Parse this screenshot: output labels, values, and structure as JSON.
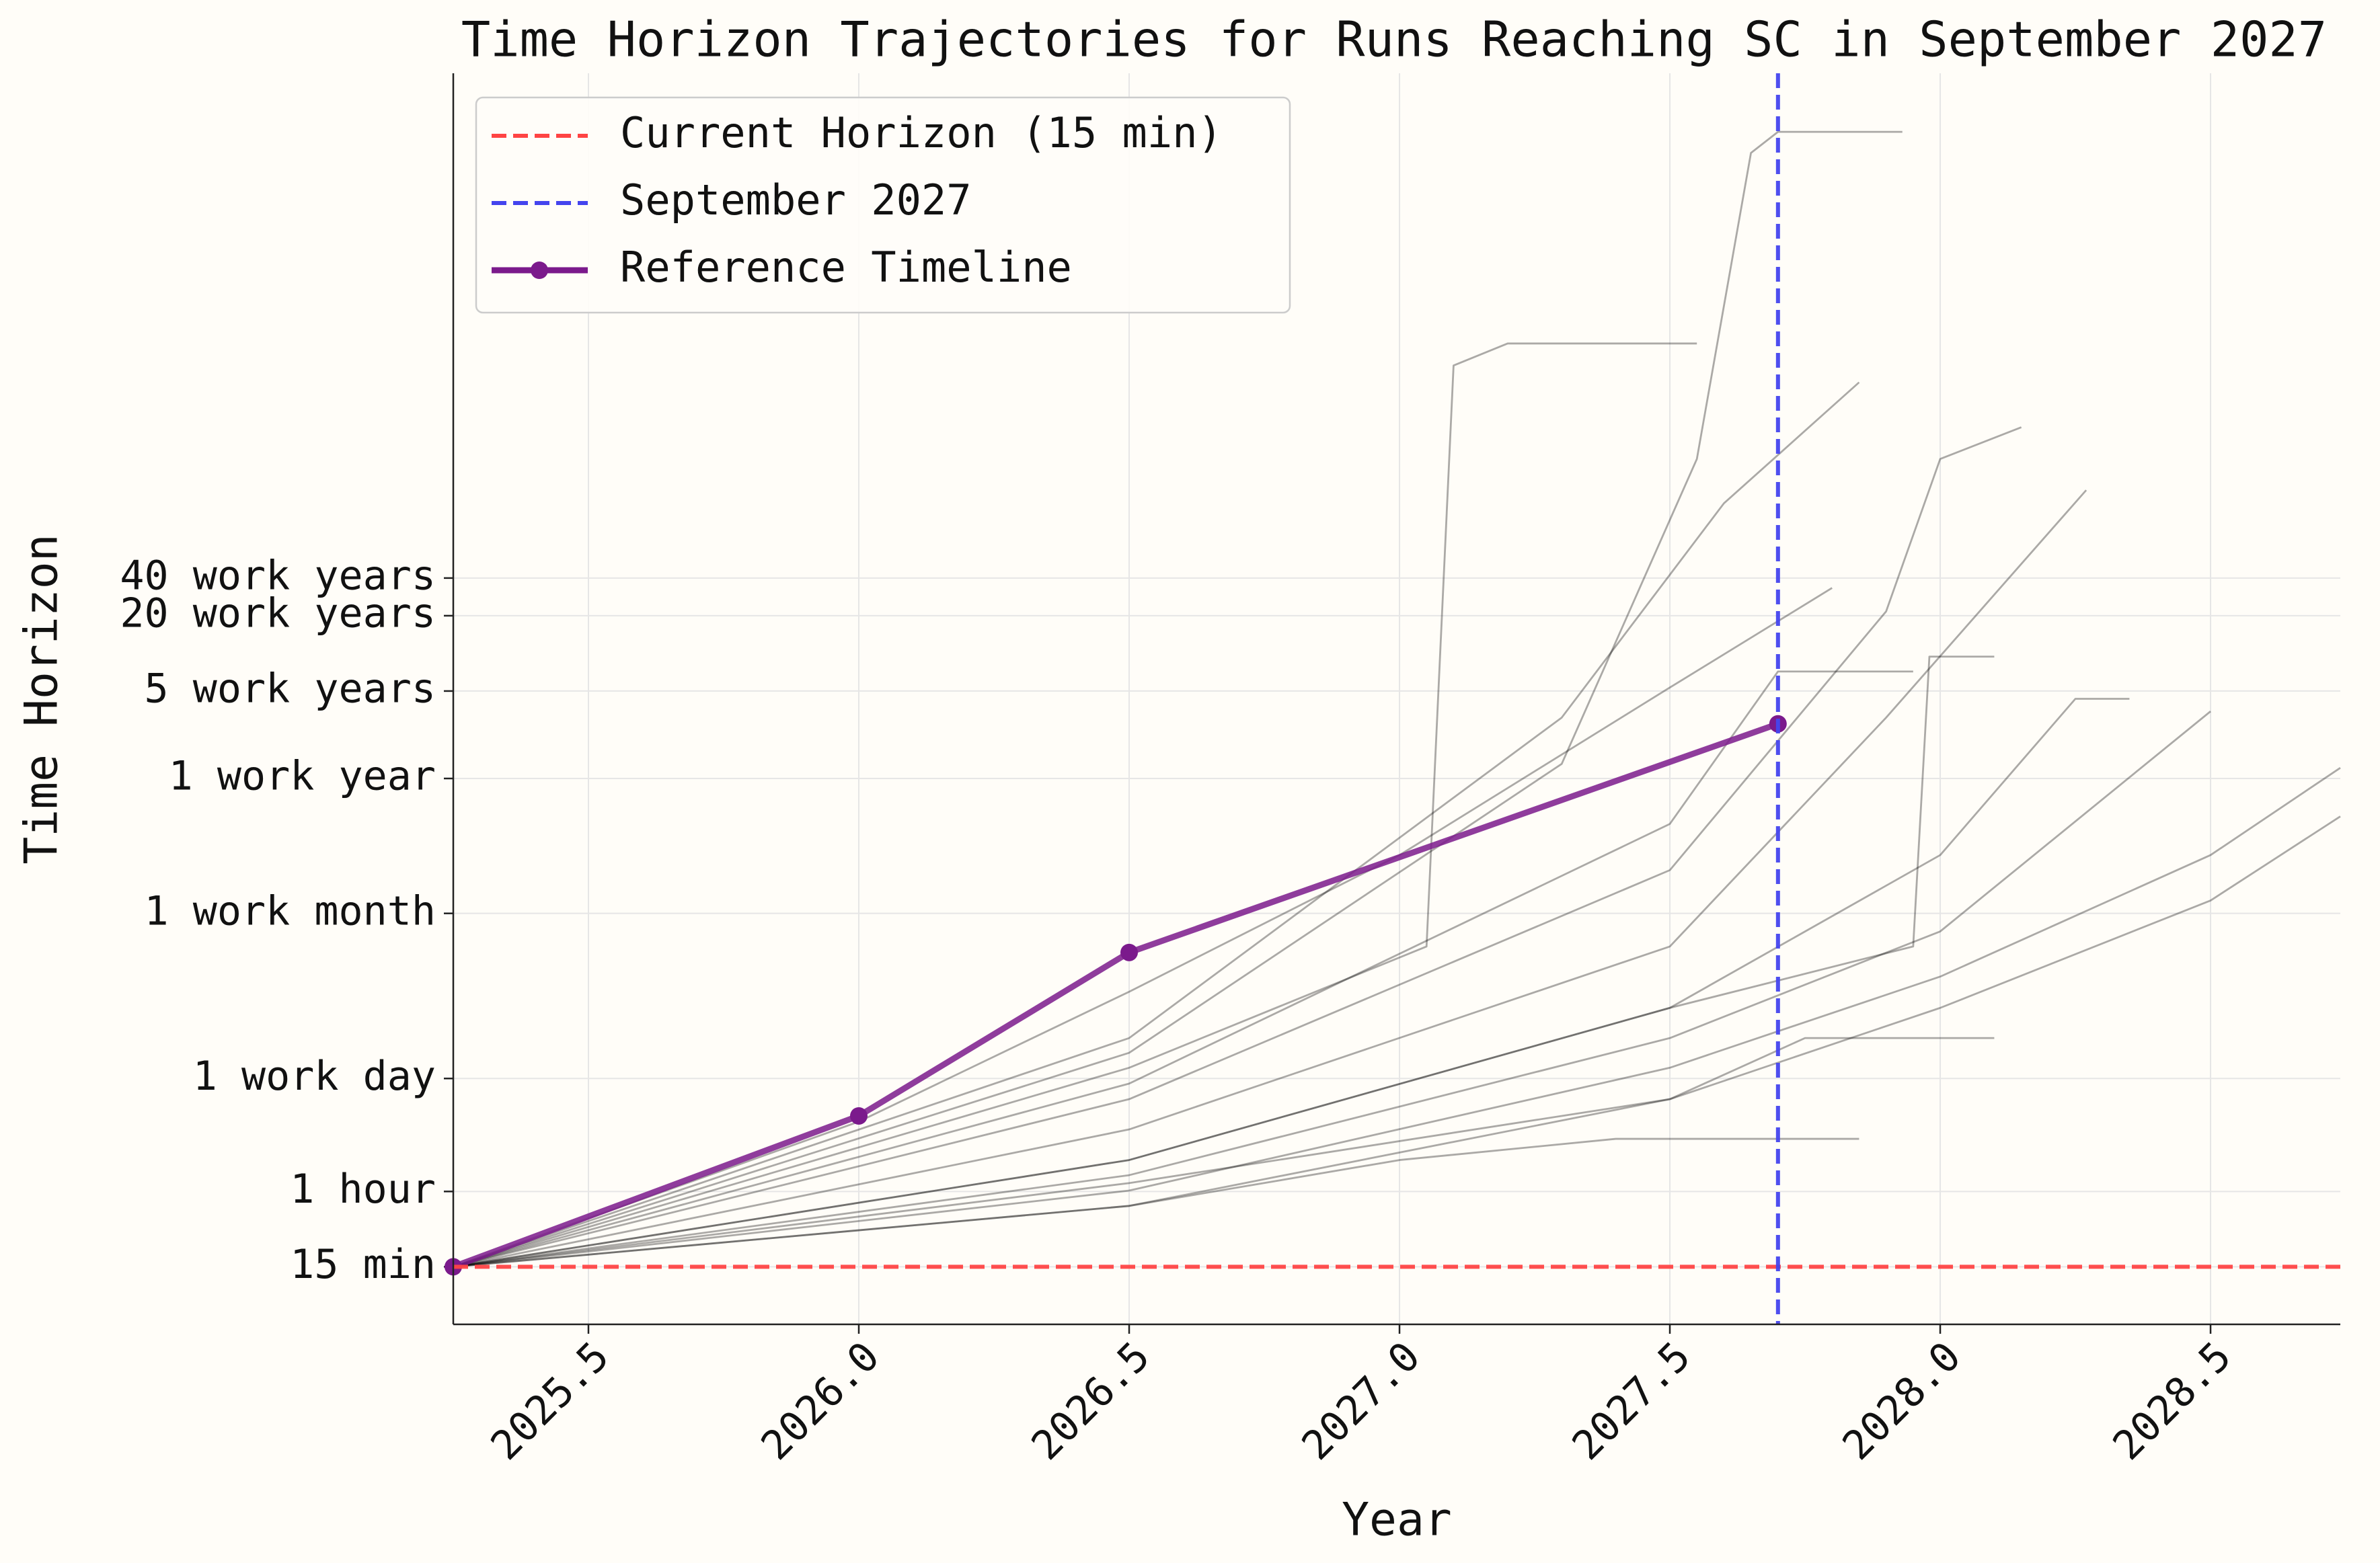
{
  "chart_data": {
    "type": "line",
    "title": "Time Horizon Trajectories for Runs Reaching SC in September 2027",
    "xlabel": "Year",
    "ylabel": "Time Horizon",
    "xlim": [
      2025.25,
      2028.74
    ],
    "xticks": [
      2025.5,
      {
        "value": 2026,
        "label": "2026.0"
      },
      2026.5,
      {
        "value": 2027,
        "label": "2027.0"
      },
      2027.5,
      {
        "value": 2028,
        "label": "2028.0"
      },
      2028.5
    ],
    "ylim": [
      5.2,
      52000000000
    ],
    "yscale": "log",
    "yticks": [
      {
        "value": 15,
        "label": "15 min"
      },
      {
        "value": 60,
        "label": "1 hour"
      },
      {
        "value": 480,
        "label": "1 work day"
      },
      {
        "value": 10020,
        "label": "1 work month"
      },
      {
        "value": 120000,
        "label": "1 work year"
      },
      {
        "value": 600000,
        "label": "5 work years"
      },
      {
        "value": 2400000,
        "label": "20 work years"
      },
      {
        "value": 4800000,
        "label": "40 work years"
      }
    ],
    "grid": true,
    "legend": "upper left",
    "reference_lines": [
      {
        "name": "Current Horizon (15 min)",
        "axis": "y",
        "value": 15,
        "color": "#ff4444"
      },
      {
        "name": "September 2027",
        "axis": "x",
        "value": 2027.7,
        "color": "#4444ee"
      }
    ],
    "series": [
      {
        "color": "#000000",
        "x": [
          2025.25,
          2026.5,
          2027.5,
          2028.0,
          2028.5,
          2028.74
        ],
        "values": [
          15,
          46,
          328,
          1760,
          12700,
          59700
        ]
      },
      {
        "color": "#000000",
        "x": [
          2025.25,
          2026.5,
          2027.5,
          2028.0,
          2028.5,
          2028.74
        ],
        "values": [
          15,
          61,
          585,
          3130,
          29300,
          146000
        ]
      },
      {
        "color": "#000000",
        "x": [
          2025.25,
          2026.5,
          2027.5,
          2028.0,
          2028.5
        ],
        "values": [
          15,
          81,
          1010,
          7190,
          413000
        ]
      },
      {
        "color": "#000000",
        "x": [
          2025.25,
          2026.5,
          2027.5,
          2028.0,
          2028.25,
          2028.35
        ],
        "values": [
          15,
          107,
          1760,
          29300,
          520000,
          520000
        ]
      },
      {
        "color": "#000000",
        "x": [
          2025.25,
          2026.5,
          2027.5,
          2027.9,
          2028.27
        ],
        "values": [
          15,
          188,
          5450,
          368000,
          24200000
        ]
      },
      {
        "color": "#000000",
        "x": [
          2025.25,
          2026.5,
          2027.5,
          2027.9,
          2028.0,
          2028.15
        ],
        "values": [
          15,
          328,
          22200,
          2600000,
          43000000,
          77000000
        ]
      },
      {
        "color": "#000000",
        "x": [
          2025.25,
          2026.5,
          2027.05,
          2027.1,
          2027.2,
          2027.55
        ],
        "values": [
          15,
          585,
          5450,
          240000000,
          360000000,
          360000000
        ]
      },
      {
        "color": "#000000",
        "x": [
          2025.25,
          2026.5,
          2027.3,
          2027.55,
          2027.65,
          2027.7,
          2027.93
        ],
        "values": [
          15,
          770,
          157000,
          43000000,
          12000000000,
          17700000000,
          17700000000
        ]
      },
      {
        "color": "#000000",
        "x": [
          2025.25,
          2026.5,
          2027.3,
          2027.6,
          2027.85
        ],
        "values": [
          15,
          1010,
          368000,
          19000000,
          176000000
        ]
      },
      {
        "color": "#000000",
        "x": [
          2025.25,
          2026.5,
          2027.5,
          2027.75,
          2028.1
        ],
        "values": [
          15,
          70,
          328,
          1010,
          1010
        ]
      },
      {
        "color": "#000000",
        "x": [
          2025.25,
          2026.5,
          2027.0,
          2027.4,
          2027.85
        ],
        "values": [
          15,
          46,
          107,
          158,
          158
        ]
      },
      {
        "color": "#000000",
        "x": [
          2025.25,
          2026.0,
          2026.5,
          2027.0,
          2027.5,
          2027.8
        ],
        "values": [
          15,
          217,
          2370,
          29300,
          640000,
          4000000
        ]
      },
      {
        "color": "#000000",
        "x": [
          2025.25,
          2026.5,
          2027.5,
          2027.7,
          2027.95
        ],
        "values": [
          15,
          437,
          52000,
          860000,
          860000
        ]
      },
      {
        "color": "#000000",
        "x": [
          2025.25,
          2026.5,
          2027.5,
          2027.95,
          2027.98,
          2028.1
        ],
        "values": [
          15,
          107,
          1760,
          5450,
          1130000,
          1130000
        ]
      },
      {
        "name": "Reference Timeline",
        "color": "#7b1a8c",
        "marker": true,
        "x": [
          2025.25,
          2026.0,
          2026.5,
          2027.7
        ],
        "values": [
          15,
          241,
          4880,
          328000
        ]
      }
    ]
  }
}
